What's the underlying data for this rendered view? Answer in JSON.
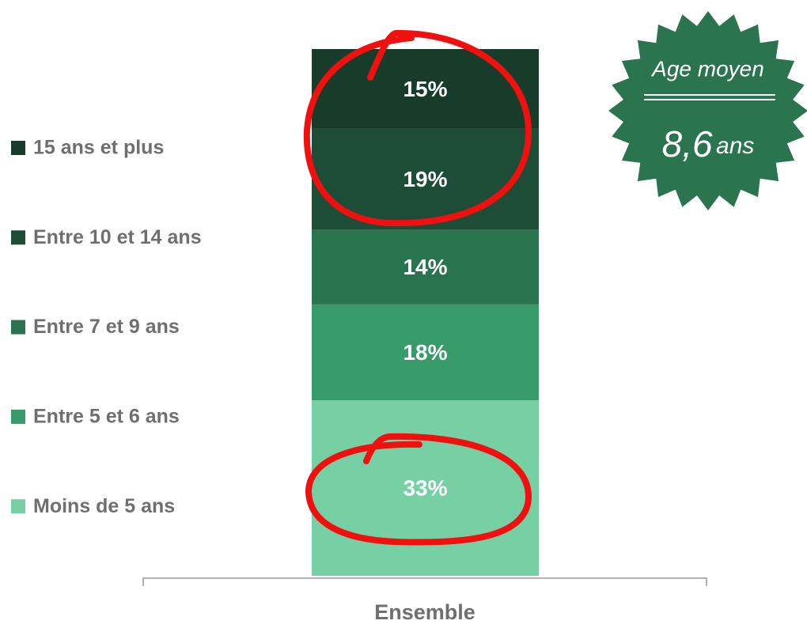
{
  "chart_data": {
    "type": "stacked_bar",
    "categories": [
      "Ensemble"
    ],
    "series": [
      {
        "name": "Moins de 5 ans",
        "color": "#76d0a3",
        "values": [
          33
        ],
        "value_labels": [
          "33%"
        ]
      },
      {
        "name": "Entre 5 et 6 ans",
        "color": "#379b6a",
        "values": [
          18
        ],
        "value_labels": [
          "18%"
        ]
      },
      {
        "name": "Entre 7 et 9 ans",
        "color": "#28744f",
        "values": [
          14
        ],
        "value_labels": [
          "14%"
        ]
      },
      {
        "name": "Entre 10 et 14 ans",
        "color": "#1d4d36",
        "values": [
          19
        ],
        "value_labels": [
          "19%"
        ]
      },
      {
        "name": "15 ans et plus",
        "color": "#173d2a",
        "values": [
          15
        ],
        "value_labels": [
          "15%"
        ]
      }
    ],
    "legend": "left"
  },
  "badge": {
    "title": "Age moyen",
    "value": "8,6",
    "unit": "ans",
    "color": "#2a7450"
  }
}
